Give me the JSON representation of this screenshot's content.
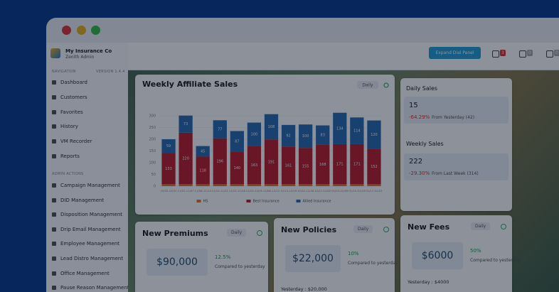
{
  "sidebar": {
    "brand": "My Insurance Co",
    "subtitle": "Zenith Admin",
    "nav_label": "NAVIGATION",
    "version": "VERSION 1.4.4",
    "nav": [
      "Dashboard",
      "Customers",
      "Favorites",
      "History",
      "VM Recorder",
      "Reports"
    ],
    "admin_label": "ADMIN ACTIONS",
    "admin": [
      "Campaign Management",
      "DID Management",
      "Disposition Management",
      "Drip Email Management",
      "Employee Management",
      "Lead Distro Management",
      "Office Management",
      "Pause Reason Management"
    ]
  },
  "topbar": {
    "button": "Expand Dial Panel",
    "badges": [
      "3",
      "0",
      "0"
    ]
  },
  "chart_data": {
    "type": "bar",
    "stacked": true,
    "title": "Weekly Affiliate Sales",
    "filter": "Daily",
    "categories": [
      "10/25-10/31",
      "11/01-11/07",
      "11/08-11/14",
      "11/15-11/21",
      "11/22-11/28",
      "11/29-12/05",
      "12/06-12/12",
      "12/13-12/19",
      "12/20-12/26",
      "12/27-01/02",
      "01/03-01/09",
      "01/10-01/16",
      "01/17-01/23"
    ],
    "series": [
      {
        "name": "HS",
        "color": "#e8772e",
        "labels": false,
        "values": [
          8,
          8,
          8,
          8,
          8,
          8,
          8,
          8,
          8,
          8,
          8,
          8,
          8
        ]
      },
      {
        "name": "Best Insurance",
        "color": "#c0202c",
        "labels": true,
        "values": [
          133,
          220,
          118,
          196,
          140,
          163,
          191,
          161,
          155,
          168,
          171,
          171,
          152
        ]
      },
      {
        "name": "Allied Insurance",
        "color": "#2f6db2",
        "labels": true,
        "values": [
          59,
          73,
          45,
          77,
          87,
          100,
          108,
          92,
          100,
          83,
          134,
          114,
          120
        ]
      }
    ],
    "ylim": [
      0,
      300
    ],
    "yticks": [
      0,
      50,
      100,
      150,
      200,
      250,
      300
    ]
  },
  "daily_sales": {
    "title": "Daily Sales",
    "value": "15",
    "change": "-64.29%",
    "note": "From Yesterday (42)"
  },
  "weekly_sales": {
    "title": "Weekly Sales",
    "value": "222",
    "change": "-29.30%",
    "note": "From Last Week (314)"
  },
  "cards": [
    {
      "title": "New Premiums",
      "filter": "Daily",
      "value": "$90,000",
      "change": "12.5%",
      "note": "Compared to yesterday"
    },
    {
      "title": "New Policies",
      "filter": "Daily",
      "value": "$22,000",
      "change": "10%",
      "note": "Compared to yesterday",
      "yesterday": "Yesterday : $20,000"
    },
    {
      "title": "New Fees",
      "filter": "Daily",
      "value": "$6000",
      "change": "50%",
      "note": "Compared to yesterday",
      "yesterday": "Yesterday : $4000"
    }
  ]
}
